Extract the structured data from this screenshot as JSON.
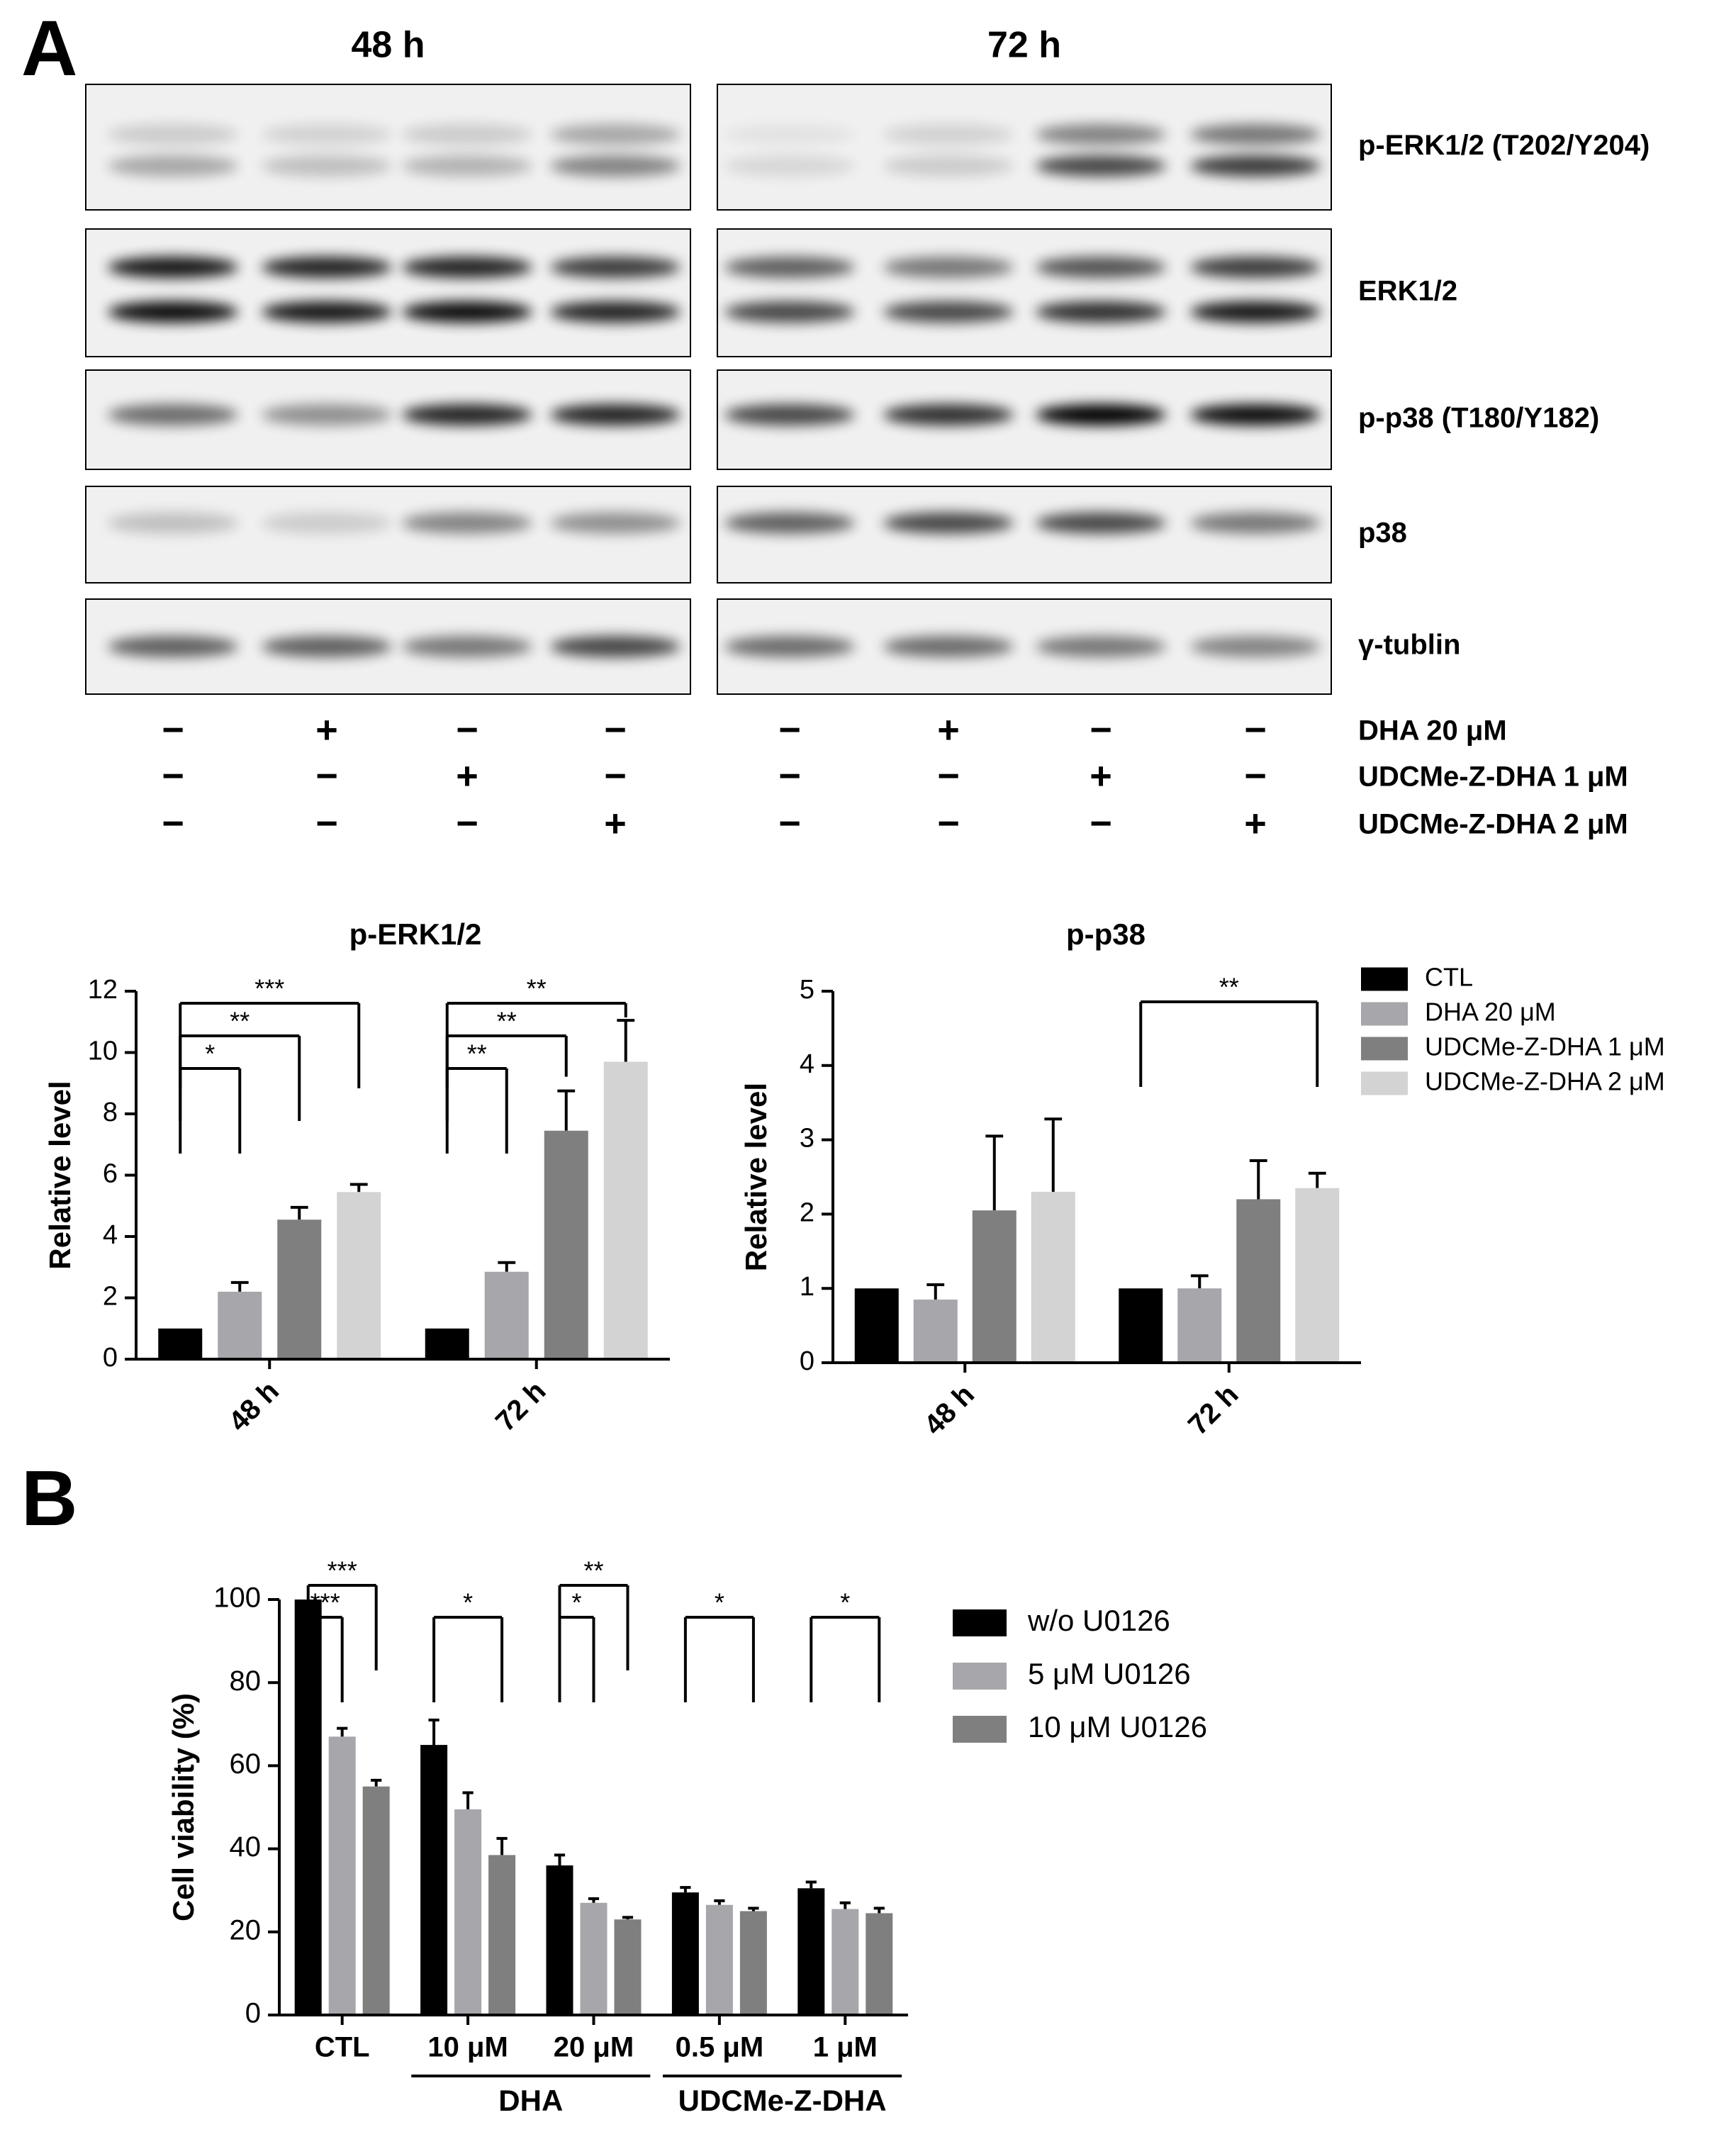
{
  "figure": {
    "panel_a": "A",
    "panel_b": "B",
    "blot": {
      "timepoints": [
        "48 h",
        "72 h"
      ],
      "proteins": [
        "p-ERK1/2 (T202/Y204)",
        "ERK1/2",
        "p-p38 (T180/Y182)",
        "p38",
        "γ-tublin"
      ],
      "treatments": [
        {
          "label": "DHA 20 μM",
          "signs": [
            "−",
            "+",
            "−",
            "−",
            "−",
            "+",
            "−",
            "−"
          ]
        },
        {
          "label": "UDCMe-Z-DHA 1 μM",
          "signs": [
            "−",
            "−",
            "+",
            "−",
            "−",
            "−",
            "+",
            "−"
          ]
        },
        {
          "label": "UDCMe-Z-DHA 2 μM",
          "signs": [
            "−",
            "−",
            "−",
            "+",
            "−",
            "−",
            "−",
            "+"
          ]
        }
      ]
    }
  },
  "chart_data": [
    {
      "type": "bar",
      "title": "p-ERK1/2",
      "y_label": "Relative level",
      "categories": [
        "48 h",
        "72 h"
      ],
      "series": [
        {
          "color": "#000000",
          "values": [
            1,
            1
          ]
        },
        {
          "color": "#a6a6ab",
          "values": [
            2.2,
            2.85
          ],
          "errors": [
            0.3,
            0.3
          ]
        },
        {
          "color": "#7f7f7f",
          "values": [
            4.55,
            7.45
          ],
          "errors": [
            0.4,
            1.3
          ]
        },
        {
          "color": "#d3d3d3",
          "values": [
            5.45,
            9.7
          ],
          "errors": [
            0.25,
            1.35
          ]
        }
      ],
      "ylim": [
        0,
        12
      ],
      "yticks": [
        0,
        2,
        4,
        6,
        8,
        10,
        12
      ],
      "annotations": [
        {
          "text": "*",
          "category": 0,
          "from": 0,
          "to": 1
        },
        {
          "text": "**",
          "category": 0,
          "from": 0,
          "to": 2
        },
        {
          "text": "***",
          "category": 0,
          "from": 0,
          "to": 3
        },
        {
          "text": "**",
          "category": 1,
          "from": 0,
          "to": 1
        },
        {
          "text": "**",
          "category": 1,
          "from": 0,
          "to": 2
        },
        {
          "text": "**",
          "category": 1,
          "from": 0,
          "to": 3
        }
      ]
    },
    {
      "type": "bar",
      "title": "p-p38",
      "y_label": "Relative level",
      "categories": [
        "48 h",
        "72 h"
      ],
      "series": [
        {
          "name": "CTL",
          "color": "#000000",
          "values": [
            1,
            1
          ]
        },
        {
          "name": "DHA 20 μM",
          "color": "#a6a6ab",
          "values": [
            0.85,
            1.0
          ],
          "errors": [
            0.2,
            0.17
          ]
        },
        {
          "name": "UDCMe-Z-DHA 1 μM",
          "color": "#7f7f7f",
          "values": [
            2.05,
            2.2
          ],
          "errors": [
            1.0,
            0.52
          ]
        },
        {
          "name": "UDCMe-Z-DHA 2 μM",
          "color": "#d3d3d3",
          "values": [
            2.3,
            2.35
          ],
          "errors": [
            0.98,
            0.2
          ]
        }
      ],
      "ylim": [
        0,
        5
      ],
      "yticks": [
        0,
        1,
        2,
        3,
        4,
        5
      ],
      "annotations": [
        {
          "text": "**",
          "category": 1,
          "from": 0,
          "to": 3
        }
      ]
    },
    {
      "type": "bar",
      "y_label": "Cell viability (%)",
      "categories": [
        "CTL",
        "10 μM",
        "20 μM",
        "0.5 μM",
        "1 μM"
      ],
      "groups": [
        {
          "label": "DHA",
          "categories": [
            1,
            2
          ]
        },
        {
          "label": "UDCMe-Z-DHA",
          "categories": [
            3,
            4
          ]
        }
      ],
      "series": [
        {
          "name": "w/o U0126",
          "color": "#000000",
          "values": [
            100,
            65,
            36,
            29.5,
            30.5
          ],
          "errors": [
            null,
            6,
            2.5,
            1.2,
            1.5
          ]
        },
        {
          "name": "5 μM U0126",
          "color": "#a6a6ab",
          "values": [
            67,
            49.5,
            27,
            26.5,
            25.5
          ],
          "errors": [
            2,
            4,
            1,
            1,
            1.5
          ]
        },
        {
          "name": "10 μM U0126",
          "color": "#7f7f7f",
          "values": [
            55,
            38.5,
            23,
            25,
            24.5
          ],
          "errors": [
            1.5,
            4,
            0.5,
            0.7,
            1.2
          ]
        }
      ],
      "ylim": [
        0,
        100
      ],
      "yticks": [
        0,
        20,
        40,
        60,
        80,
        100
      ],
      "annotations": [
        {
          "text": "***",
          "category": 0,
          "from": 0,
          "to": 1
        },
        {
          "text": "***",
          "category": 0,
          "from": 0,
          "to": 2
        },
        {
          "text": "*",
          "category": 1,
          "from": 0,
          "to": 2
        },
        {
          "text": "*",
          "category": 2,
          "from": 0,
          "to": 1
        },
        {
          "text": "**",
          "category": 2,
          "from": 0,
          "to": 2
        },
        {
          "text": "*",
          "category": 3,
          "from": 0,
          "to": 2
        },
        {
          "text": "*",
          "category": 4,
          "from": 0,
          "to": 2
        }
      ]
    }
  ]
}
